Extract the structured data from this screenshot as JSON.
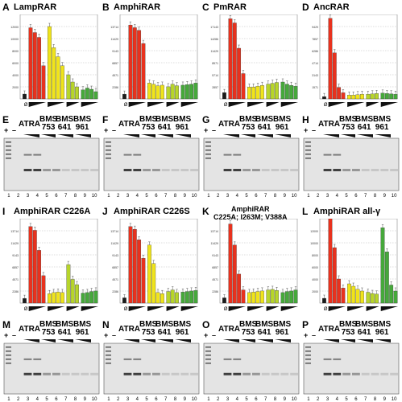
{
  "panels_top": [
    {
      "letter": "A",
      "title": "LampRAR",
      "values": [
        800,
        11800,
        11000,
        10200,
        5500,
        12000,
        8500,
        7000,
        5500,
        4000,
        2800,
        2000,
        1500,
        1800,
        1600,
        1200
      ],
      "ymax": 14000
    },
    {
      "letter": "B",
      "title": "AmphiRAR",
      "values": [
        900,
        14000,
        13500,
        13000,
        10500,
        3000,
        2800,
        2500,
        2600,
        2300,
        2800,
        2500,
        2600,
        2700,
        2800,
        3000
      ],
      "ymax": 16000
    },
    {
      "letter": "C",
      "title": "PmRAR",
      "values": [
        1500,
        19000,
        18000,
        12000,
        6000,
        2800,
        2800,
        3000,
        3200,
        3500,
        3700,
        3900,
        4000,
        3500,
        3200,
        3000
      ],
      "ymax": 20000
    },
    {
      "letter": "D",
      "title": "AncRAR",
      "values": [
        300,
        10500,
        6000,
        1500,
        800,
        500,
        500,
        550,
        600,
        600,
        650,
        700,
        750,
        700,
        650,
        600
      ],
      "ymax": 11000
    }
  ],
  "gels_top": [
    {
      "letter": "E",
      "ligands": [
        "ATRA",
        "BMS\n753",
        "BMS\n641",
        "BMS\n961"
      ]
    },
    {
      "letter": "F",
      "ligands": [
        "ATRA",
        "BMS\n753",
        "BMS\n641",
        "BMS\n961"
      ]
    },
    {
      "letter": "G",
      "ligands": [
        "ATRA",
        "BMS\n753",
        "BMS\n641",
        "BMS\n961"
      ]
    },
    {
      "letter": "H",
      "ligands": [
        "ATRA",
        "BMS\n753",
        "BMS\n641",
        "BMS\n961"
      ]
    }
  ],
  "panels_bottom": [
    {
      "letter": "I",
      "title": "AmphiRAR C226A",
      "values": [
        900,
        14500,
        13800,
        10000,
        5200,
        1800,
        2000,
        2100,
        2000,
        7300,
        4500,
        3500,
        1900,
        2000,
        2200,
        2300
      ],
      "ymax": 16000
    },
    {
      "letter": "J",
      "title": "AmphiRAR C226S",
      "values": [
        1000,
        14500,
        14000,
        12000,
        8500,
        11000,
        7500,
        2000,
        1800,
        2200,
        2500,
        2000,
        2100,
        2200,
        2300,
        2400
      ],
      "ymax": 16000
    },
    {
      "letter": "K",
      "title": "AmphiRAR\nC225A; I263M; V388A",
      "values": [
        1000,
        15000,
        11000,
        5500,
        2500,
        2000,
        2100,
        2200,
        2300,
        2500,
        2600,
        2400,
        2000,
        2200,
        2300,
        2500
      ],
      "ymax": 16000
    },
    {
      "letter": "L",
      "title": "AmphiRAR all-γ",
      "values": [
        800,
        14000,
        9200,
        4000,
        2500,
        3200,
        2800,
        2300,
        2000,
        1800,
        1600,
        1500,
        12500,
        8500,
        3000,
        2000
      ],
      "ymax": 14000
    }
  ],
  "gels_bottom": [
    {
      "letter": "M",
      "ligands": [
        "ATRA",
        "BMS\n753",
        "BMS\n641",
        "BMS\n961"
      ]
    },
    {
      "letter": "N",
      "ligands": [
        "ATRA",
        "BMS\n753",
        "BMS\n641",
        "BMS\n961"
      ]
    },
    {
      "letter": "O",
      "ligands": [
        "ATRA",
        "BMS\n753",
        "BMS\n641",
        "BMS\n961"
      ]
    },
    {
      "letter": "P",
      "ligands": [
        "ATRA",
        "BMS\n753",
        "BMS\n641",
        "BMS\n961"
      ]
    }
  ],
  "lane_numbers": [
    "1",
    "2",
    "3",
    "4",
    "5",
    "6",
    "7",
    "8",
    "9",
    "10"
  ],
  "plus_label": "+",
  "minus_label": "–",
  "ctrl_symbol": "Ø",
  "colors": {
    "control": "#1a1a1a",
    "atra": "#e8321e",
    "bms753": "#f0e41a",
    "bms641": "#b7d52a",
    "bms961": "#46a83b"
  }
}
